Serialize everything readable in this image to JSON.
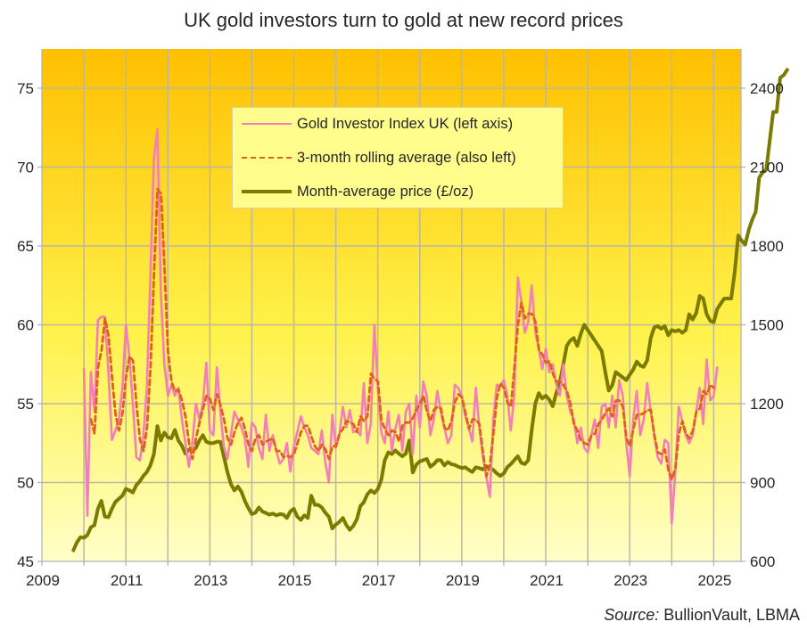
{
  "chart_data": {
    "type": "line",
    "title": "UK gold investors turn to gold at new record prices",
    "source_label": "Source:",
    "source_text": "BullionVault,  LBMA",
    "x_ticks": [
      "2009",
      "2011",
      "2013",
      "2015",
      "2017",
      "2019",
      "2021",
      "2023",
      "2025"
    ],
    "xlim": [
      2009,
      2025.65
    ],
    "y_left": {
      "ticks": [
        "45",
        "50",
        "55",
        "60",
        "65",
        "70",
        "75"
      ],
      "ylim": [
        45,
        77.5
      ]
    },
    "y_right": {
      "ticks": [
        "600",
        "900",
        "1200",
        "1500",
        "1800",
        "2100",
        "2400"
      ],
      "ylim": [
        600,
        2550
      ]
    },
    "grid": true,
    "legend_position": "top-center",
    "colors": {
      "index": "#f47fb8",
      "rolling": "#e06020",
      "price": "#7b7b00",
      "bg_top": "#ffc000",
      "bg_bottom": "#ffffc8"
    },
    "series": [
      {
        "name": "Gold Investor Index UK (left axis)",
        "axis": "left",
        "start": 2010.0,
        "step_months": 1,
        "values": [
          57.2,
          47.9,
          57.0,
          54.5,
          60.3,
          60.5,
          60.5,
          57.0,
          52.7,
          53.3,
          54.0,
          56.0,
          60.0,
          58.0,
          55.0,
          51.6,
          51.4,
          53.0,
          56.0,
          63.0,
          70.5,
          72.4,
          62.0,
          57.5,
          55.5,
          56.2,
          55.5,
          56.0,
          54.0,
          52.5,
          51.0,
          52.5,
          55.0,
          54.0,
          55.0,
          57.6,
          53.3,
          53.0,
          57.3,
          54.5,
          52.3,
          51.5,
          53.0,
          54.5,
          54.0,
          53.5,
          52.8,
          51.0,
          53.8,
          53.5,
          52.2,
          51.5,
          54.3,
          52.0,
          53.0,
          52.0,
          51.2,
          51.5,
          52.5,
          50.7,
          52.3,
          53.2,
          54.2,
          53.5,
          53.0,
          52.2,
          52.0,
          51.8,
          53.3,
          51.3,
          50.0,
          54.3,
          52.2,
          53.0,
          54.8,
          53.5,
          54.6,
          53.2,
          53.3,
          53.0,
          56.3,
          52.5,
          53.7,
          60.0,
          56.0,
          53.2,
          52.5,
          54.5,
          52.0,
          53.4,
          54.3,
          52.0,
          54.5,
          55.0,
          51.8,
          55.5,
          53.5,
          56.4,
          55.5,
          53.0,
          54.0,
          55.8,
          54.5,
          53.5,
          52.5,
          53.0,
          56.2,
          56.0,
          55.5,
          54.2,
          53.5,
          52.6,
          56.0,
          53.5,
          51.7,
          50.4,
          49.1,
          54.0,
          56.2,
          56.1,
          56.5,
          55.5,
          53.3,
          55.5,
          63.0,
          61.5,
          59.5,
          60.2,
          62.5,
          59.5,
          58.5,
          57.2,
          58.5,
          57.0,
          57.5,
          56.2,
          55.5,
          57.5,
          55.5,
          54.5,
          54.0,
          52.5,
          53.5,
          52.2,
          51.9,
          53.0,
          54.0,
          52.2,
          54.8,
          55.0,
          53.5,
          55.5,
          53.5,
          56.5,
          55.5,
          52.5,
          50.4,
          54.0,
          55.8,
          53.0,
          54.0,
          56.3,
          54.5,
          53.0,
          51.6,
          51.2,
          52.7,
          52.5,
          47.4,
          50.6,
          54.8,
          53.9,
          53.0,
          52.5,
          53.0,
          54.5,
          56.0,
          53.7,
          57.8,
          55.2,
          55.5,
          57.3
        ]
      },
      {
        "name": "3-month rolling average (also left)",
        "axis": "left",
        "start": 2010.17,
        "step_months": 1,
        "values": [
          54.0,
          53.1,
          57.3,
          58.4,
          60.4,
          59.3,
          56.7,
          54.3,
          53.3,
          54.4,
          56.7,
          58.0,
          57.7,
          54.9,
          52.7,
          52.0,
          53.5,
          57.3,
          63.2,
          68.6,
          68.3,
          63.6,
          58.3,
          56.4,
          55.8,
          55.9,
          55.2,
          54.2,
          52.5,
          51.5,
          52.8,
          53.8,
          54.7,
          55.5,
          55.3,
          54.6,
          55.6,
          54.9,
          54.0,
          52.8,
          52.4,
          53.2,
          53.8,
          54.1,
          53.4,
          52.4,
          52.0,
          52.8,
          53.0,
          52.4,
          52.6,
          52.7,
          52.8,
          52.0,
          52.0,
          51.6,
          51.7,
          51.6,
          51.8,
          52.5,
          53.2,
          53.6,
          53.6,
          52.9,
          52.3,
          52.0,
          52.4,
          52.1,
          51.5,
          52.3,
          52.3,
          53.1,
          53.4,
          53.9,
          53.8,
          53.7,
          53.2,
          54.2,
          53.9,
          54.2,
          56.9,
          56.6,
          56.4,
          53.9,
          53.4,
          53.0,
          53.3,
          53.2,
          52.6,
          53.6,
          53.8,
          53.8,
          54.1,
          54.6,
          55.0,
          55.5,
          54.5,
          53.9,
          54.6,
          54.8,
          54.7,
          53.5,
          53.3,
          53.9,
          55.1,
          55.6,
          55.4,
          54.4,
          53.4,
          54.0,
          54.0,
          53.7,
          51.9,
          50.4,
          51.1,
          53.1,
          55.4,
          56.3,
          56.0,
          55.1,
          54.8,
          57.3,
          60.0,
          61.4,
          60.4,
          60.7,
          60.7,
          60.2,
          58.4,
          58.1,
          57.6,
          57.7,
          56.9,
          56.4,
          56.4,
          56.2,
          55.8,
          55.0,
          53.7,
          53.3,
          52.7,
          52.5,
          52.4,
          53.0,
          53.1,
          53.7,
          54.0,
          54.4,
          54.7,
          54.2,
          55.2,
          55.2,
          54.8,
          52.8,
          52.3,
          53.4,
          54.3,
          54.3,
          54.4,
          54.6,
          54.6,
          53.0,
          51.9,
          51.8,
          52.1,
          50.8,
          50.2,
          50.9,
          53.1,
          53.9,
          53.1,
          52.8,
          53.3,
          54.5,
          54.7,
          55.8,
          55.6,
          56.2,
          56.0
        ]
      },
      {
        "name": "Month-average price (£/oz)",
        "axis": "right",
        "start": 2009.75,
        "step_months": 1,
        "values": [
          642,
          672,
          692,
          690,
          700,
          730,
          738,
          800,
          830,
          770,
          768,
          800,
          826,
          838,
          850,
          876,
          870,
          862,
          890,
          905,
          925,
          940,
          965,
          1008,
          1115,
          1060,
          1090,
          1072,
          1068,
          1100,
          1060,
          1040,
          1010,
          1025,
          1020,
          1032,
          1060,
          1080,
          1055,
          1050,
          1050,
          1055,
          1055,
          1000,
          940,
          895,
          870,
          885,
          865,
          830,
          803,
          780,
          785,
          805,
          790,
          784,
          778,
          782,
          775,
          780,
          778,
          765,
          790,
          800,
          770,
          758,
          775,
          765,
          850,
          815,
          815,
          805,
          785,
          770,
          725,
          740,
          750,
          765,
          738,
          720,
          735,
          760,
          810,
          825,
          855,
          870,
          860,
          875,
          910,
          985,
          1015,
          1008,
          1022,
          1010,
          1000,
          1010,
          1060,
          938,
          968,
          980,
          985,
          990,
          960,
          970,
          985,
          985,
          965,
          978,
          970,
          967,
          960,
          955,
          958,
          948,
          940,
          958,
          955,
          950,
          962,
          955,
          948,
          935,
          925,
          935,
          958,
          970,
          985,
          1000,
          975,
          970,
          985,
          1100,
          1200,
          1240,
          1220,
          1230,
          1215,
          1190,
          1240,
          1280,
          1350,
          1420,
          1440,
          1450,
          1420,
          1465,
          1500,
          1480,
          1460,
          1440,
          1420,
          1400,
          1320,
          1250,
          1270,
          1320,
          1310,
          1300,
          1290,
          1310,
          1330,
          1360,
          1345,
          1340,
          1365,
          1450,
          1490,
          1495,
          1485,
          1495,
          1460,
          1480,
          1475,
          1480,
          1470,
          1480,
          1540,
          1520,
          1545,
          1610,
          1600,
          1540,
          1515,
          1510,
          1560,
          1580,
          1600,
          1600,
          1600,
          1700,
          1840,
          1820,
          1805,
          1860,
          1900,
          1930,
          2060,
          2080,
          2090,
          2200,
          2310,
          2310,
          2440,
          2450,
          2470
        ]
      }
    ]
  }
}
